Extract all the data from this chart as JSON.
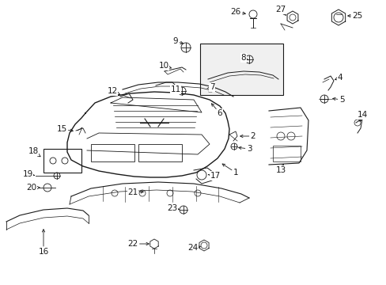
{
  "bg_color": "#ffffff",
  "line_color": "#1a1a1a",
  "fig_width": 4.89,
  "fig_height": 3.6,
  "dpi": 100,
  "label_fontsize": 7.5
}
